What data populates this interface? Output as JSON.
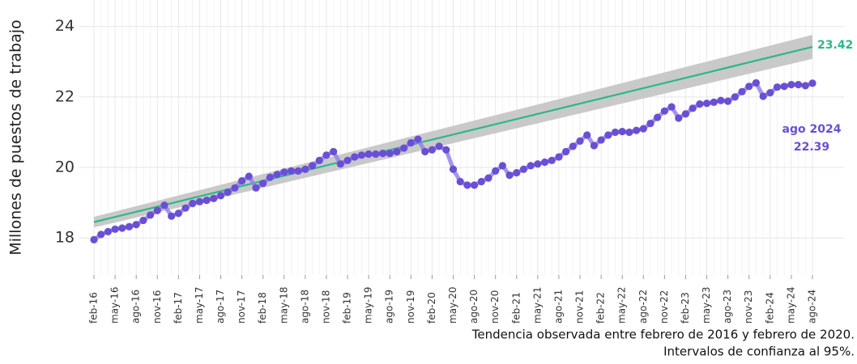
{
  "chart_data": {
    "type": "line",
    "ylabel": "Millones de puestos de trabajo",
    "caption": [
      "Tendencia observada entre febrero de 2016 y febrero de 2020.",
      "Intervalos de confianza al 95%."
    ],
    "annotation": "ago 2024",
    "categories": [
      "feb-16",
      null,
      null,
      "may-16",
      null,
      null,
      "ago-16",
      null,
      null,
      "nov-16",
      null,
      null,
      "feb-17",
      null,
      null,
      "may-17",
      null,
      null,
      "ago-17",
      null,
      null,
      "nov-17",
      null,
      null,
      "feb-18",
      null,
      null,
      "may-18",
      null,
      null,
      "ago-18",
      null,
      null,
      "nov-18",
      null,
      null,
      "feb-19",
      null,
      null,
      "may-19",
      null,
      null,
      "ago-19",
      null,
      null,
      "nov-19",
      null,
      null,
      "feb-20",
      null,
      null,
      "may-20",
      null,
      null,
      "ago-20",
      null,
      null,
      "nov-20",
      null,
      null,
      "feb-21",
      null,
      null,
      "may-21",
      null,
      null,
      "ago-21",
      null,
      null,
      "nov-21",
      null,
      null,
      "feb-22",
      null,
      null,
      "may-22",
      null,
      null,
      "ago-22",
      null,
      null,
      "nov-22",
      null,
      null,
      "feb-23",
      null,
      null,
      "may-23",
      null,
      null,
      "ago-23",
      null,
      null,
      "nov-23",
      null,
      null,
      "feb-24",
      null,
      null,
      "may-24",
      null,
      null,
      "ago-24"
    ],
    "series": [
      {
        "color": "#6a4fd6",
        "line_color": "#9583e6",
        "values": [
          17.95,
          18.1,
          18.18,
          18.25,
          18.28,
          18.32,
          18.38,
          18.5,
          18.65,
          18.78,
          18.93,
          18.62,
          18.7,
          18.85,
          18.98,
          19.03,
          19.07,
          19.12,
          19.2,
          19.3,
          19.42,
          19.62,
          19.75,
          19.42,
          19.55,
          19.72,
          19.8,
          19.87,
          19.9,
          19.9,
          19.95,
          20.05,
          20.2,
          20.35,
          20.45,
          20.1,
          20.2,
          20.3,
          20.35,
          20.38,
          20.38,
          20.4,
          20.4,
          20.45,
          20.55,
          20.7,
          20.8,
          20.45,
          20.5,
          20.6,
          20.5,
          19.95,
          19.6,
          19.5,
          19.5,
          19.6,
          19.7,
          19.9,
          20.05,
          19.78,
          19.85,
          19.95,
          20.05,
          20.1,
          20.15,
          20.2,
          20.3,
          20.45,
          20.6,
          20.75,
          20.92,
          20.62,
          20.78,
          20.92,
          21.0,
          21.02,
          21.0,
          21.05,
          21.1,
          21.25,
          21.42,
          21.6,
          21.72,
          21.4,
          21.52,
          21.68,
          21.8,
          21.82,
          21.85,
          21.9,
          21.88,
          22.0,
          22.15,
          22.3,
          22.4,
          22.02,
          22.12,
          22.28,
          22.3,
          22.35,
          22.35,
          22.32,
          22.39
        ]
      }
    ],
    "trend": {
      "color": "#2bb88b",
      "band_color": "#c9c9c9",
      "values": [
        18.45,
        23.42
      ],
      "lower": [
        18.3,
        23.08
      ],
      "upper": [
        18.6,
        23.76
      ]
    },
    "ylim": [
      16.95,
      24.75
    ],
    "yticks": [
      18,
      20,
      22,
      24
    ],
    "grid": true
  }
}
